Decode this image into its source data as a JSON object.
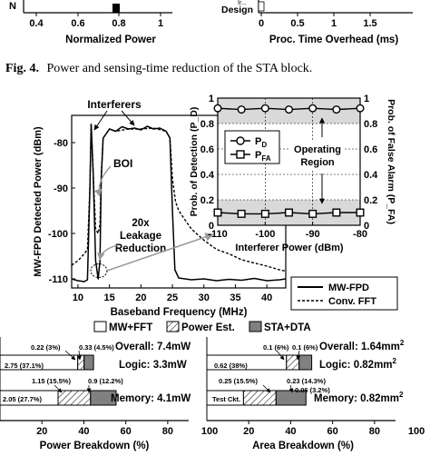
{
  "top_strip": {
    "left_ticks": [
      "0.4",
      "0.6",
      "0.8",
      "1"
    ],
    "left_xlabel": "Normalized Power",
    "left_ycut": "N",
    "right_ticks": [
      "0",
      "0.5",
      "1",
      "1.5"
    ],
    "right_xlabel": "Proc. Time Overhead (ms)",
    "right_category": "Design",
    "right_category_cut": "Ir..."
  },
  "fig4_caption": {
    "label": "Fig. 4.",
    "text": "Power and sensing-time reduction of the STA block."
  },
  "spectrum": {
    "ylabel": "MW-FPD Detected Power (dBm)",
    "xlabel": "Baseband Frequency (MHz)",
    "yticks": [
      "-80",
      "-90",
      "-100",
      "-110"
    ],
    "xticks": [
      "10",
      "15",
      "20",
      "25",
      "30",
      "35",
      "40"
    ],
    "interferers_label": "Interferers",
    "boi_label": "BOI",
    "leakage_label": [
      "20x",
      "Leakage",
      "Reduction"
    ],
    "legend": [
      "MW-FPD",
      "Conv. FFT"
    ]
  },
  "inset": {
    "ylabel_left": "Prob. of Detection (P_D)",
    "ylabel_right": "Prob. of False Alarm (P_FA)",
    "xlabel": "Interferer Power (dBm)",
    "xticks": [
      "-110",
      "-100",
      "-90",
      "-80"
    ],
    "yticks": [
      "0",
      "0.2",
      "0.4",
      "0.6",
      "0.8",
      "1"
    ],
    "legend_pd": "P",
    "legend_pd_sub": "D",
    "legend_pfa": "P",
    "legend_pfa_sub": "FA",
    "operating_label": [
      "Operating",
      "Region"
    ]
  },
  "breakdown_legend": [
    "MW+FFT",
    "Power Est.",
    "STA+DTA"
  ],
  "power_breakdown": {
    "xlabel": "Power Breakdown (%)",
    "xticks": [
      "20",
      "40",
      "60",
      "80",
      "100"
    ],
    "overall": "Overall: 7.4mW",
    "logic_label": "Logic: 3.3mW",
    "memory_label": "Memory: 4.1mW",
    "logic_annotations": [
      "2.75 (37.1%)",
      "0.22 (3%)",
      "0.33 (4.5%)"
    ],
    "memory_annotations": [
      "2.05 (27.7%)",
      "1.15 (15.5%)",
      "0.9 (12.2%)"
    ]
  },
  "area_breakdown": {
    "xlabel": "Area Breakdown (%)",
    "xticks": [
      "20",
      "40",
      "60",
      "80",
      "100"
    ],
    "overall": "Overall: 1.64mm",
    "logic_label": "Logic: 0.82mm",
    "memory_label": "Memory: 0.82mm",
    "sup": "2",
    "logic_annotations": [
      "0.62 (38%)",
      "0.1 (6%)",
      "0.1 (6%)"
    ],
    "memory_annotations": [
      "Test Ckt.",
      "0.25 (15.5%)",
      "0.23 (14.3%)",
      "0.06 (3.2%)"
    ]
  },
  "colors": {
    "mwfft": "#ffffff",
    "power_est": "#ffffff",
    "sta_dta": "#808080",
    "grid_band": "#d9d9d9",
    "gray_arrow": "#a0a0a0"
  },
  "chart_data": [
    {
      "type": "line",
      "title": "",
      "xlabel": "Baseband Frequency (MHz)",
      "ylabel": "MW-FPD Detected Power (dBm)",
      "xlim": [
        9,
        43
      ],
      "ylim": [
        -112,
        -74
      ],
      "series": [
        {
          "name": "MW-FPD",
          "x": [
            9,
            10,
            11,
            11.5,
            11.9,
            12.1,
            12.4,
            12.8,
            13.2,
            13.5,
            13.7,
            14,
            14.5,
            15,
            16,
            17,
            18,
            19,
            20,
            21,
            22,
            23,
            24,
            24.6,
            25,
            25.4,
            26,
            28,
            30,
            32,
            34,
            36,
            38,
            40,
            42,
            43
          ],
          "y": [
            -110,
            -110.4,
            -110.6,
            -110.2,
            -90,
            -76,
            -86,
            -106,
            -110,
            -106,
            -88,
            -79,
            -78,
            -77,
            -77.5,
            -76.5,
            -77,
            -76.8,
            -77.2,
            -76.4,
            -77,
            -76.8,
            -77.5,
            -79,
            -95,
            -108,
            -109.8,
            -110.2,
            -110,
            -110.4,
            -110.1,
            -110.3,
            -109.9,
            -110.4,
            -110.2,
            -110
          ]
        },
        {
          "name": "Conv. FFT",
          "x": [
            9,
            10,
            11,
            11.5,
            11.9,
            12.1,
            12.4,
            12.8,
            13.2,
            13.5,
            13.7,
            14,
            15,
            16,
            18,
            20,
            22,
            24,
            24.6,
            25,
            25.5,
            26,
            27,
            28,
            30,
            32,
            34,
            36,
            38,
            40,
            42,
            43
          ],
          "y": [
            -107,
            -106,
            -104.5,
            -103.5,
            -90,
            -76,
            -86,
            -99,
            -100,
            -98,
            -87,
            -79,
            -77,
            -77.5,
            -77,
            -77,
            -76.8,
            -77.5,
            -79,
            -88,
            -93,
            -95,
            -97,
            -99,
            -101.5,
            -103.5,
            -104.5,
            -105.8,
            -106.5,
            -107.2,
            -108,
            -108.3
          ]
        }
      ]
    },
    {
      "type": "line",
      "title": "",
      "xlabel": "Interferer Power (dBm)",
      "ylabel": "Prob. of Detection (P_D)",
      "ylabel_right": "Prob. of False Alarm (P_FA)",
      "xlim": [
        -110,
        -80
      ],
      "ylim": [
        0,
        1
      ],
      "series": [
        {
          "name": "P_D",
          "x": [
            -110,
            -105,
            -100,
            -95,
            -90,
            -85,
            -80
          ],
          "y": [
            0.92,
            0.91,
            0.92,
            0.91,
            0.92,
            0.91,
            0.92
          ]
        },
        {
          "name": "P_FA",
          "x": [
            -110,
            -105,
            -100,
            -95,
            -90,
            -85,
            -80
          ],
          "y": [
            0.1,
            0.09,
            0.09,
            0.1,
            0.09,
            0.1,
            0.1
          ]
        }
      ]
    },
    {
      "type": "bar",
      "title": "Overall: 7.4mW",
      "xlabel": "Power Breakdown (%)",
      "categories": [
        "Logic: 3.3mW",
        "Memory: 4.1mW"
      ],
      "series": [
        {
          "name": "MW+FFT",
          "values": [
            37.1,
            27.7
          ]
        },
        {
          "name": "Power Est.",
          "values": [
            3,
            15.5
          ]
        },
        {
          "name": "STA+DTA",
          "values": [
            4.5,
            12.2
          ]
        }
      ]
    },
    {
      "type": "bar",
      "title": "Overall: 1.64mm²",
      "xlabel": "Area Breakdown (%)",
      "categories": [
        "Logic: 0.82mm²",
        "Memory: 0.82mm²"
      ],
      "series": [
        {
          "name": "MW+FFT",
          "values": [
            38,
            17.5
          ]
        },
        {
          "name": "Power Est.",
          "values": [
            6,
            15.5
          ]
        },
        {
          "name": "STA+DTA",
          "values": [
            6,
            14.3
          ]
        }
      ]
    }
  ]
}
